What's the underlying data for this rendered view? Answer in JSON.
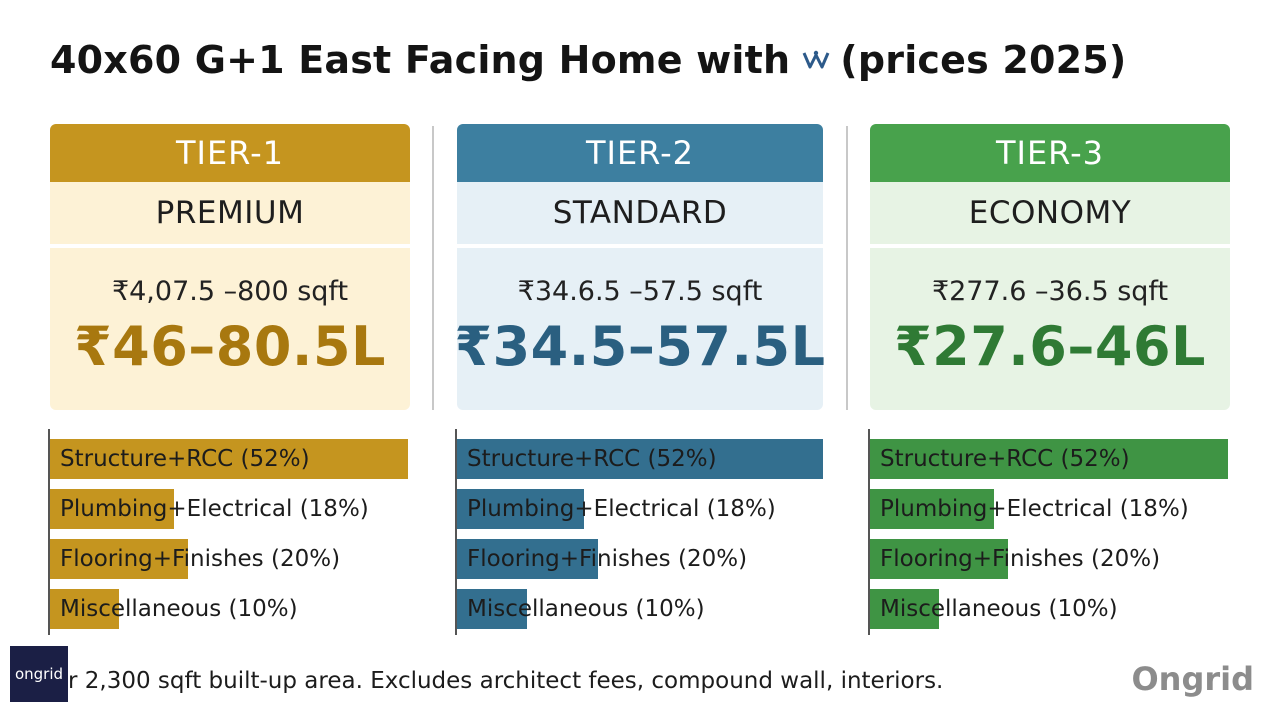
{
  "title": {
    "before_logo": "40x60 G+1 East Facing Home with",
    "after_logo": "(prices 2025)",
    "logo_icon": "emblem-icon"
  },
  "chart_data": {
    "type": "bar",
    "tiers": [
      {
        "tier": "TIER-1",
        "level": "PREMIUM",
        "rate": "₹4,07.5 –800 sqft",
        "total": "₹46–80.5L",
        "colors": {
          "head": "#c5951f",
          "panel": "#fdf2d6",
          "total": "#a8780f",
          "bar": "#c5951f"
        }
      },
      {
        "tier": "TIER-2",
        "level": "STANDARD",
        "rate": "₹34.6.5 –57.5 sqft",
        "total": "₹34.5–57.5L",
        "colors": {
          "head": "#3d7fa0",
          "panel": "#e6f0f6",
          "total": "#2a5f80",
          "bar": "#336f8f"
        }
      },
      {
        "tier": "TIER-3",
        "level": "ECONOMY",
        "rate": "₹277.6 –36.5 sqft",
        "total": "₹27.6–46L",
        "colors": {
          "head": "#48a24c",
          "panel": "#e7f3e4",
          "total": "#2f7a34",
          "bar": "#3f9444"
        }
      }
    ],
    "breakdown": [
      {
        "label": "Structure+RCC (52%)",
        "value": 52
      },
      {
        "label": "Plumbing+Electrical (18%)",
        "value": 18
      },
      {
        "label": "Flooring+Finishes (20%)",
        "value": 20
      },
      {
        "label": "Miscellaneous (10%)",
        "value": 10
      }
    ],
    "value_max": 52
  },
  "footnote": "r 2,300 sqft built-up area. Excludes architect fees, compound wall, interiors.",
  "brand_left": "ongrid",
  "brand_right": "Ongrid"
}
